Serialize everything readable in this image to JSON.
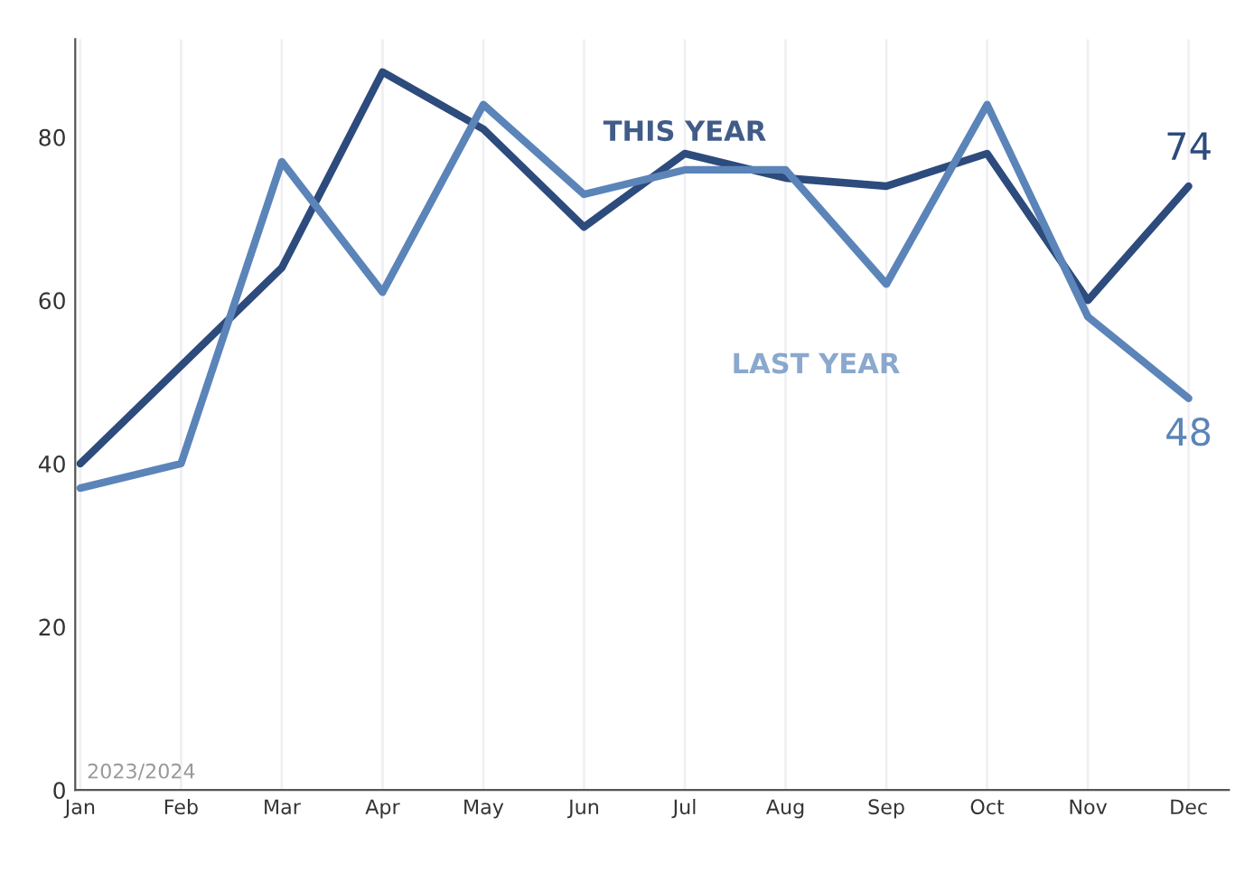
{
  "chart_data": {
    "type": "line",
    "categories": [
      "Jan",
      "Feb",
      "Mar",
      "Apr",
      "May",
      "Jun",
      "Jul",
      "Aug",
      "Sep",
      "Oct",
      "Nov",
      "Dec"
    ],
    "series": [
      {
        "name": "THIS YEAR",
        "color": "#2d4b7c",
        "values": [
          40,
          52,
          64,
          88,
          81,
          69,
          78,
          75,
          74,
          78,
          60,
          74
        ],
        "value_labels": [
          null,
          null,
          null,
          null,
          null,
          null,
          null,
          null,
          null,
          null,
          null,
          "74"
        ]
      },
      {
        "name": "LAST YEAR",
        "color": "#5b84b9",
        "values": [
          37,
          40,
          77,
          61,
          84,
          73,
          76,
          76,
          62,
          84,
          58,
          48
        ],
        "value_labels": [
          null,
          null,
          null,
          null,
          null,
          null,
          null,
          null,
          null,
          null,
          null,
          "48"
        ]
      }
    ],
    "ylim": [
      0,
      92
    ],
    "yticks": [
      0,
      20,
      40,
      60,
      80
    ],
    "grid": "x",
    "legend": false,
    "marker": "none",
    "line_style": "solid",
    "annotations": [
      "2023/2024"
    ]
  }
}
